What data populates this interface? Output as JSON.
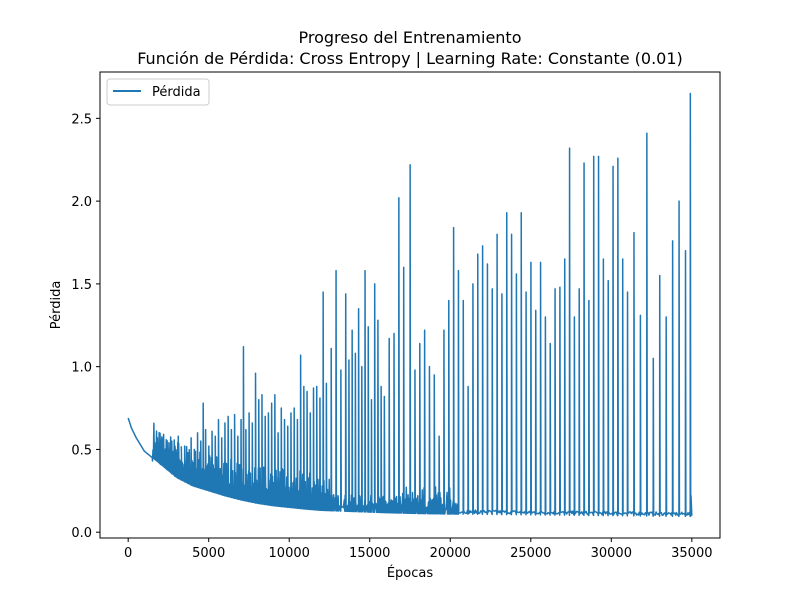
{
  "chart_data": {
    "type": "line",
    "title": "Progreso del Entrenamiento",
    "subtitle": "Función de Pérdida: Cross Entropy | Learning Rate: Constante (0.01)",
    "xlabel": "Épocas",
    "ylabel": "Pérdida",
    "xlim": [
      -1750,
      36750
    ],
    "ylim": [
      -0.035,
      2.78
    ],
    "xticks": [
      0,
      5000,
      10000,
      15000,
      20000,
      25000,
      30000,
      35000
    ],
    "xtick_labels": [
      "0",
      "5000",
      "10000",
      "15000",
      "20000",
      "25000",
      "30000",
      "35000"
    ],
    "yticks": [
      0.0,
      0.5,
      1.0,
      1.5,
      2.0,
      2.5
    ],
    "ytick_labels": [
      "0.0",
      "0.5",
      "1.0",
      "1.5",
      "2.0",
      "2.5"
    ],
    "grid": false,
    "legend": {
      "position": "top-left",
      "entries": [
        "Pérdida"
      ]
    },
    "series": [
      {
        "name": "Pérdida",
        "color": "#1f77b4",
        "baseline": {
          "x": [
            0,
            200,
            500,
            1000,
            1500,
            2000,
            2500,
            3000,
            4000,
            5000,
            6000,
            7000,
            8000,
            9000,
            10000,
            11000,
            12000,
            14000,
            16000,
            18000,
            20000,
            25000,
            30000,
            35000
          ],
          "y": [
            0.69,
            0.63,
            0.57,
            0.49,
            0.45,
            0.41,
            0.37,
            0.33,
            0.28,
            0.25,
            0.22,
            0.195,
            0.175,
            0.16,
            0.15,
            0.14,
            0.132,
            0.125,
            0.118,
            0.113,
            0.11,
            0.105,
            0.1,
            0.095
          ]
        },
        "spikes": {
          "x": [
            1500,
            2000,
            2400,
            2700,
            2900,
            3100,
            3300,
            3500,
            3700,
            3900,
            4100,
            4300,
            4500,
            4650,
            4800,
            5000,
            5200,
            5400,
            5600,
            5800,
            6000,
            6200,
            6400,
            6600,
            6800,
            7000,
            7150,
            7300,
            7500,
            7700,
            7900,
            8100,
            8300,
            8500,
            8700,
            8900,
            9100,
            9300,
            9500,
            9700,
            9900,
            10100,
            10300,
            10500,
            10700,
            10900,
            11100,
            11300,
            11500,
            11700,
            11900,
            12100,
            12300,
            12600,
            12900,
            13200,
            13500,
            13700,
            13900,
            14100,
            14300,
            14500,
            14700,
            14900,
            15100,
            15300,
            15500,
            15700,
            15900,
            16200,
            16500,
            16800,
            17100,
            17500,
            17800,
            18100,
            18400,
            18700,
            19000,
            19300,
            19600,
            19900,
            20200,
            20500,
            20800,
            21100,
            21400,
            21700,
            22000,
            22300,
            22600,
            22900,
            23200,
            23500,
            23800,
            24100,
            24400,
            24700,
            25000,
            25300,
            25600,
            25900,
            26200,
            26500,
            26800,
            27100,
            27400,
            27700,
            28000,
            28300,
            28600,
            28900,
            29200,
            29500,
            29800,
            30100,
            30400,
            30700,
            31000,
            31400,
            31800,
            32200,
            32600,
            33000,
            33400,
            33800,
            34200,
            34600,
            34900
          ],
          "y": [
            0.43,
            0.42,
            0.48,
            0.55,
            0.52,
            0.58,
            0.46,
            0.52,
            0.48,
            0.57,
            0.5,
            0.6,
            0.55,
            0.78,
            0.62,
            0.52,
            0.61,
            0.58,
            0.68,
            0.57,
            0.66,
            0.7,
            0.62,
            0.71,
            0.58,
            0.68,
            1.12,
            0.62,
            0.72,
            0.66,
            0.96,
            0.8,
            0.83,
            0.7,
            0.72,
            0.78,
            0.83,
            0.6,
            0.75,
            0.68,
            0.64,
            0.72,
            0.75,
            0.68,
            1.07,
            0.88,
            0.85,
            0.72,
            0.87,
            0.88,
            0.81,
            1.45,
            0.9,
            1.11,
            1.58,
            0.98,
            1.44,
            1.04,
            1.22,
            1.08,
            1.35,
            1.0,
            1.58,
            1.24,
            0.8,
            1.5,
            1.28,
            0.88,
            0.82,
            1.17,
            1.2,
            2.02,
            1.6,
            2.22,
            0.98,
            1.14,
            1.22,
            1.0,
            0.95,
            0.58,
            1.22,
            1.4,
            1.84,
            1.58,
            1.4,
            0.88,
            1.5,
            1.68,
            1.73,
            1.62,
            1.47,
            1.8,
            1.44,
            1.93,
            1.8,
            1.56,
            1.93,
            1.45,
            1.63,
            1.34,
            1.63,
            1.3,
            1.14,
            1.47,
            1.48,
            1.65,
            2.32,
            1.3,
            1.47,
            2.23,
            1.4,
            2.27,
            2.27,
            1.65,
            1.52,
            2.21,
            2.26,
            1.65,
            1.45,
            1.81,
            1.31,
            2.41,
            1.05,
            1.55,
            1.3,
            1.76,
            2.0,
            1.7,
            2.65
          ]
        }
      }
    ]
  }
}
